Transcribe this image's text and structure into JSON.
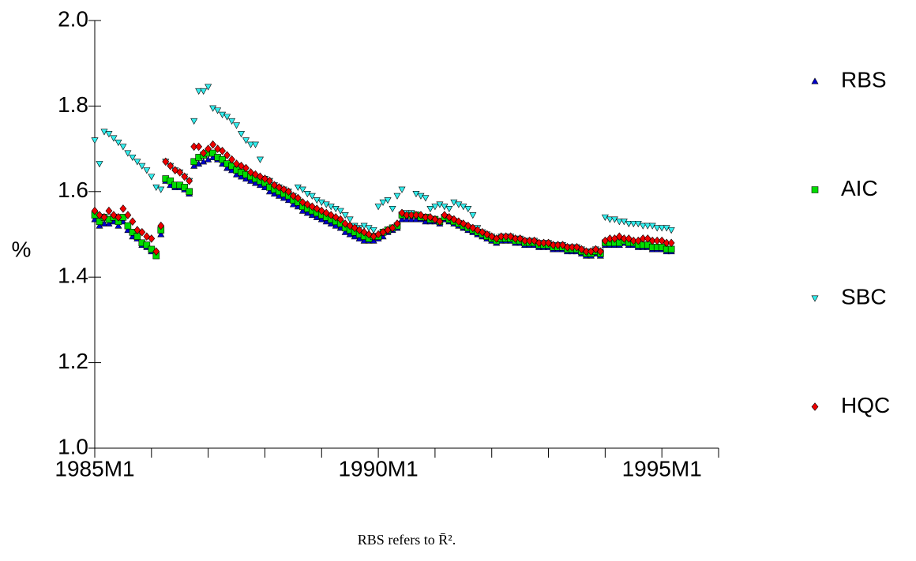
{
  "chart_data": {
    "type": "scatter",
    "y_label": "%",
    "note": "RBS refers to R̄².",
    "legend": "right",
    "x": [
      "1985M1",
      "1985M2",
      "1985M3",
      "1985M4",
      "1985M5",
      "1985M6",
      "1985M7",
      "1985M8",
      "1985M9",
      "1985M10",
      "1985M11",
      "1985M12",
      "1986M1",
      "1986M2",
      "1986M3",
      "1986M4",
      "1986M5",
      "1986M6",
      "1986M7",
      "1986M8",
      "1986M9",
      "1986M10",
      "1986M11",
      "1986M12",
      "1987M1",
      "1987M2",
      "1987M3",
      "1987M4",
      "1987M5",
      "1987M6",
      "1987M7",
      "1987M8",
      "1987M9",
      "1987M10",
      "1987M11",
      "1987M12",
      "1988M1",
      "1988M2",
      "1988M3",
      "1988M4",
      "1988M5",
      "1988M6",
      "1988M7",
      "1988M8",
      "1988M9",
      "1988M10",
      "1988M11",
      "1988M12",
      "1989M1",
      "1989M2",
      "1989M3",
      "1989M4",
      "1989M5",
      "1989M6",
      "1989M7",
      "1989M8",
      "1989M9",
      "1989M10",
      "1989M11",
      "1989M12",
      "1990M1",
      "1990M2",
      "1990M3",
      "1990M4",
      "1990M5",
      "1990M6",
      "1990M7",
      "1990M8",
      "1990M9",
      "1990M10",
      "1990M11",
      "1990M12",
      "1991M1",
      "1991M2",
      "1991M3",
      "1991M4",
      "1991M5",
      "1991M6",
      "1991M7",
      "1991M8",
      "1991M9",
      "1991M10",
      "1991M11",
      "1991M12",
      "1992M1",
      "1992M2",
      "1992M3",
      "1992M4",
      "1992M5",
      "1992M6",
      "1992M7",
      "1992M8",
      "1992M9",
      "1992M10",
      "1992M11",
      "1992M12",
      "1993M1",
      "1993M2",
      "1993M3",
      "1993M4",
      "1993M5",
      "1993M6",
      "1993M7",
      "1993M8",
      "1993M9",
      "1993M10",
      "1993M11",
      "1993M12",
      "1994M1",
      "1994M2",
      "1994M3",
      "1994M4",
      "1994M5",
      "1994M6",
      "1994M7",
      "1994M8",
      "1994M9",
      "1994M10",
      "1994M11",
      "1994M12",
      "1995M1",
      "1995M2",
      "1995M3"
    ],
    "series": [
      {
        "name": "RBS",
        "color": "#0000cc",
        "marker": "triangle-up",
        "values": [
          1.535,
          1.52,
          1.525,
          1.525,
          1.53,
          1.52,
          1.53,
          1.51,
          1.495,
          1.49,
          1.475,
          1.47,
          1.46,
          1.45,
          1.5,
          1.625,
          1.615,
          1.61,
          1.61,
          1.605,
          1.595,
          1.66,
          1.665,
          1.67,
          1.675,
          1.68,
          1.675,
          1.665,
          1.655,
          1.65,
          1.64,
          1.635,
          1.63,
          1.625,
          1.62,
          1.615,
          1.61,
          1.6,
          1.595,
          1.59,
          1.585,
          1.58,
          1.57,
          1.565,
          1.555,
          1.55,
          1.545,
          1.54,
          1.535,
          1.53,
          1.525,
          1.52,
          1.515,
          1.505,
          1.5,
          1.495,
          1.49,
          1.485,
          1.485,
          1.485,
          1.49,
          1.495,
          1.505,
          1.51,
          1.515,
          1.535,
          1.535,
          1.535,
          1.535,
          1.535,
          1.53,
          1.53,
          1.53,
          1.525,
          1.535,
          1.53,
          1.525,
          1.52,
          1.515,
          1.51,
          1.505,
          1.5,
          1.495,
          1.49,
          1.485,
          1.48,
          1.485,
          1.485,
          1.485,
          1.48,
          1.48,
          1.475,
          1.475,
          1.475,
          1.47,
          1.47,
          1.47,
          1.465,
          1.465,
          1.465,
          1.46,
          1.46,
          1.46,
          1.455,
          1.45,
          1.45,
          1.455,
          1.45,
          1.475,
          1.475,
          1.475,
          1.475,
          1.48,
          1.475,
          1.475,
          1.47,
          1.47,
          1.47,
          1.465,
          1.465,
          1.465,
          1.46,
          1.46
        ]
      },
      {
        "name": "AIC",
        "color": "#00dd00",
        "marker": "square",
        "values": [
          1.545,
          1.53,
          1.54,
          1.535,
          1.54,
          1.53,
          1.54,
          1.52,
          1.505,
          1.495,
          1.48,
          1.475,
          1.465,
          1.45,
          1.51,
          1.63,
          1.625,
          1.615,
          1.615,
          1.61,
          1.6,
          1.67,
          1.68,
          1.685,
          1.69,
          1.69,
          1.68,
          1.675,
          1.665,
          1.66,
          1.65,
          1.645,
          1.64,
          1.635,
          1.63,
          1.625,
          1.62,
          1.61,
          1.605,
          1.6,
          1.595,
          1.59,
          1.58,
          1.575,
          1.565,
          1.56,
          1.555,
          1.55,
          1.545,
          1.54,
          1.535,
          1.53,
          1.525,
          1.515,
          1.51,
          1.505,
          1.5,
          1.495,
          1.49,
          1.495,
          1.495,
          1.505,
          1.51,
          1.515,
          1.52,
          1.545,
          1.545,
          1.545,
          1.545,
          1.54,
          1.54,
          1.535,
          1.535,
          1.53,
          1.54,
          1.535,
          1.53,
          1.525,
          1.52,
          1.515,
          1.51,
          1.505,
          1.5,
          1.495,
          1.49,
          1.485,
          1.49,
          1.49,
          1.49,
          1.485,
          1.485,
          1.48,
          1.48,
          1.48,
          1.475,
          1.475,
          1.475,
          1.47,
          1.47,
          1.47,
          1.465,
          1.465,
          1.465,
          1.46,
          1.455,
          1.455,
          1.46,
          1.455,
          1.48,
          1.48,
          1.48,
          1.48,
          1.485,
          1.48,
          1.48,
          1.475,
          1.475,
          1.475,
          1.47,
          1.47,
          1.47,
          1.465,
          1.465
        ]
      },
      {
        "name": "SBC",
        "color": "#33eeee",
        "marker": "triangle-down",
        "values": [
          1.72,
          1.665,
          1.74,
          1.735,
          1.725,
          1.715,
          1.705,
          1.69,
          1.68,
          1.67,
          1.66,
          1.65,
          1.635,
          1.61,
          1.605,
          1.67,
          1.66,
          1.65,
          1.645,
          1.635,
          1.625,
          1.765,
          1.835,
          1.835,
          1.845,
          1.795,
          1.79,
          1.78,
          1.775,
          1.765,
          1.755,
          1.735,
          1.72,
          1.71,
          1.71,
          1.675,
          1.63,
          1.625,
          1.615,
          1.61,
          1.605,
          1.6,
          1.59,
          1.61,
          1.605,
          1.595,
          1.59,
          1.58,
          1.575,
          1.57,
          1.565,
          1.56,
          1.555,
          1.545,
          1.535,
          1.52,
          1.515,
          1.52,
          1.515,
          1.51,
          1.565,
          1.575,
          1.58,
          1.56,
          1.59,
          1.605,
          1.55,
          1.55,
          1.595,
          1.59,
          1.585,
          1.56,
          1.565,
          1.57,
          1.565,
          1.56,
          1.575,
          1.57,
          1.565,
          1.56,
          1.545,
          1.515,
          1.505,
          1.5,
          1.495,
          1.49,
          1.495,
          1.495,
          1.495,
          1.49,
          1.49,
          1.485,
          1.485,
          1.485,
          1.48,
          1.48,
          1.48,
          1.475,
          1.475,
          1.475,
          1.47,
          1.47,
          1.47,
          1.465,
          1.46,
          1.46,
          1.465,
          1.46,
          1.54,
          1.535,
          1.535,
          1.53,
          1.53,
          1.525,
          1.525,
          1.525,
          1.52,
          1.52,
          1.52,
          1.515,
          1.515,
          1.515,
          1.51
        ]
      },
      {
        "name": "HQC",
        "color": "#ee0000",
        "marker": "diamond",
        "values": [
          1.555,
          1.545,
          1.54,
          1.555,
          1.545,
          1.54,
          1.56,
          1.545,
          1.53,
          1.51,
          1.505,
          1.495,
          1.49,
          1.46,
          1.52,
          1.67,
          1.66,
          1.65,
          1.645,
          1.635,
          1.625,
          1.705,
          1.705,
          1.69,
          1.7,
          1.71,
          1.7,
          1.695,
          1.685,
          1.675,
          1.665,
          1.66,
          1.655,
          1.645,
          1.64,
          1.635,
          1.63,
          1.625,
          1.615,
          1.61,
          1.605,
          1.6,
          1.59,
          1.585,
          1.575,
          1.57,
          1.565,
          1.56,
          1.555,
          1.55,
          1.545,
          1.54,
          1.535,
          1.525,
          1.52,
          1.515,
          1.51,
          1.505,
          1.5,
          1.495,
          1.5,
          1.505,
          1.51,
          1.515,
          1.525,
          1.55,
          1.545,
          1.545,
          1.545,
          1.545,
          1.54,
          1.54,
          1.535,
          1.53,
          1.545,
          1.54,
          1.535,
          1.53,
          1.525,
          1.52,
          1.515,
          1.51,
          1.505,
          1.5,
          1.495,
          1.49,
          1.495,
          1.495,
          1.495,
          1.49,
          1.49,
          1.485,
          1.485,
          1.485,
          1.48,
          1.48,
          1.48,
          1.475,
          1.475,
          1.475,
          1.47,
          1.47,
          1.47,
          1.465,
          1.46,
          1.46,
          1.465,
          1.46,
          1.485,
          1.49,
          1.49,
          1.495,
          1.49,
          1.49,
          1.485,
          1.485,
          1.49,
          1.49,
          1.485,
          1.485,
          1.485,
          1.48,
          1.48
        ]
      }
    ],
    "xlim": [
      "1985M1",
      "1996M1"
    ],
    "xticks": [
      "1985M1",
      {
        "value": "1986M1",
        "label": null
      },
      {
        "value": "1987M1",
        "label": null
      },
      {
        "value": "1988M1",
        "label": null
      },
      {
        "value": "1989M1",
        "label": null
      },
      "1990M1",
      {
        "value": "1991M1",
        "label": null
      },
      {
        "value": "1992M1",
        "label": null
      },
      {
        "value": "1993M1",
        "label": null
      },
      {
        "value": "1994M1",
        "label": null
      },
      "1995M1",
      {
        "value": "1996M1",
        "label": null
      }
    ],
    "ylim": [
      1.0,
      2.0
    ],
    "yticks": [
      {
        "value": 1.0,
        "label": "1.0"
      },
      1.2,
      1.4,
      1.6,
      1.8,
      {
        "value": 2.0,
        "label": "2.0"
      }
    ],
    "grid": false
  }
}
